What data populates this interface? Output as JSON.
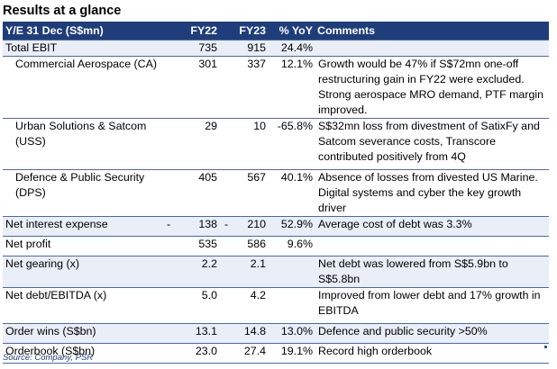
{
  "title": "Results at a glance",
  "headers": [
    "Y/E 31 Dec (S$mn)",
    "FY22",
    "FY23",
    "% YoY",
    "Comments"
  ],
  "rows": [
    {
      "label": "Total EBIT",
      "fy22": "735",
      "fy23": "915",
      "yoy": "24.4%",
      "comment": ""
    },
    {
      "label": "Commercial Aerospace (CA)",
      "fy22": "301",
      "fy23": "337",
      "yoy": "12.1%",
      "comment": "Growth would be 47% if S$72mn one-off restructuring gain in FY22 were excluded. Strong aerospace MRO demand, PTF margin improved."
    },
    {
      "label": "Urban Solutions & Satcom (USS)",
      "fy22": "29",
      "fy23": "10",
      "yoy": "-65.8%",
      "comment": "S$32mn loss from divestment of SatixFy and Satcom severance costs, Transcore contributed positively from 4Q"
    },
    {
      "label": "Defence & Public Security (DPS)",
      "fy22": "405",
      "fy23": "567",
      "yoy": "40.1%",
      "comment": "Absence of losses from divested US Marine. Digital systems and cyber the key growth driver"
    },
    {
      "label": "Net interest expense",
      "fy22_prefix": "-",
      "fy22": "138",
      "fy23_prefix": "-",
      "fy23": "210",
      "yoy": "52.9%",
      "comment": "Average cost of debt was 3.3%"
    },
    {
      "label": "Net profit",
      "fy22": "535",
      "fy23": "586",
      "yoy": "9.6%",
      "comment": ""
    },
    {
      "label": "Net gearing (x)",
      "fy22": "2.2",
      "fy23": "2.1",
      "yoy": "",
      "comment": "Net debt was lowered from S$5.9bn to S$5.8bn"
    },
    {
      "label": "Net debt/EBITDA (x)",
      "fy22": "5.0",
      "fy23": "4.2",
      "yoy": "",
      "comment": "Improved from lower debt and 17% growth in EBITDA"
    },
    {
      "label": "Order wins (S$bn)",
      "fy22": "13.1",
      "fy23": "14.8",
      "yoy": "13.0%",
      "comment": "Defence and public security >50%"
    },
    {
      "label": "Orderbook (S$bn)",
      "fy22": "23.0",
      "fy23": "27.4",
      "yoy": "19.1%",
      "comment": "Record high orderbook"
    }
  ],
  "source": "Source: Company, PSR"
}
